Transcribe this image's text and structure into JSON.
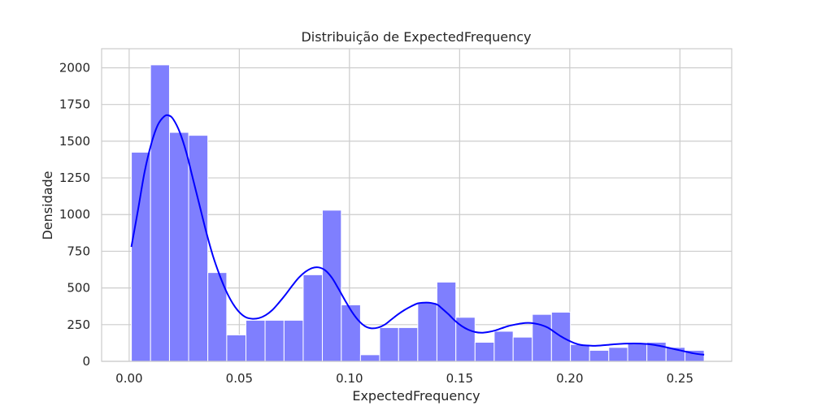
{
  "chart_data": {
    "type": "bar",
    "title": "Distribuição de ExpectedFrequency",
    "xlabel": "ExpectedFrequency",
    "ylabel": "Densidade",
    "xlim": [
      -0.0125,
      0.2735
    ],
    "ylim": [
      0,
      2130
    ],
    "grid": true,
    "bar_color": "#7f7ffe",
    "kde_color": "#0000ff",
    "xticks": [
      {
        "value": 0.0,
        "label": "0.00"
      },
      {
        "value": 0.05,
        "label": "0.05"
      },
      {
        "value": 0.1,
        "label": "0.10"
      },
      {
        "value": 0.15,
        "label": "0.15"
      },
      {
        "value": 0.2,
        "label": "0.20"
      },
      {
        "value": 0.25,
        "label": "0.25"
      }
    ],
    "yticks": [
      {
        "value": 0,
        "label": "0"
      },
      {
        "value": 250,
        "label": "250"
      },
      {
        "value": 500,
        "label": "500"
      },
      {
        "value": 750,
        "label": "750"
      },
      {
        "value": 1000,
        "label": "1000"
      },
      {
        "value": 1250,
        "label": "1250"
      },
      {
        "value": 1500,
        "label": "1500"
      },
      {
        "value": 1750,
        "label": "1750"
      },
      {
        "value": 2000,
        "label": "2000"
      }
    ],
    "bins": [
      {
        "x0": 0.001,
        "x1": 0.0097,
        "value": 1425
      },
      {
        "x0": 0.0097,
        "x1": 0.0183,
        "value": 2020
      },
      {
        "x0": 0.0183,
        "x1": 0.027,
        "value": 1560
      },
      {
        "x0": 0.027,
        "x1": 0.0357,
        "value": 1540
      },
      {
        "x0": 0.0357,
        "x1": 0.0443,
        "value": 605
      },
      {
        "x0": 0.0443,
        "x1": 0.053,
        "value": 180
      },
      {
        "x0": 0.053,
        "x1": 0.0617,
        "value": 280
      },
      {
        "x0": 0.0617,
        "x1": 0.0703,
        "value": 280
      },
      {
        "x0": 0.0703,
        "x1": 0.079,
        "value": 280
      },
      {
        "x0": 0.079,
        "x1": 0.0877,
        "value": 590
      },
      {
        "x0": 0.0877,
        "x1": 0.0963,
        "value": 1030
      },
      {
        "x0": 0.0963,
        "x1": 0.105,
        "value": 385
      },
      {
        "x0": 0.105,
        "x1": 0.1137,
        "value": 45
      },
      {
        "x0": 0.1137,
        "x1": 0.1223,
        "value": 230
      },
      {
        "x0": 0.1223,
        "x1": 0.131,
        "value": 230
      },
      {
        "x0": 0.131,
        "x1": 0.1397,
        "value": 400
      },
      {
        "x0": 0.1397,
        "x1": 0.1483,
        "value": 540
      },
      {
        "x0": 0.1483,
        "x1": 0.157,
        "value": 300
      },
      {
        "x0": 0.157,
        "x1": 0.1657,
        "value": 130
      },
      {
        "x0": 0.1657,
        "x1": 0.1743,
        "value": 205
      },
      {
        "x0": 0.1743,
        "x1": 0.183,
        "value": 165
      },
      {
        "x0": 0.183,
        "x1": 0.1917,
        "value": 320
      },
      {
        "x0": 0.1917,
        "x1": 0.2003,
        "value": 335
      },
      {
        "x0": 0.2003,
        "x1": 0.209,
        "value": 115
      },
      {
        "x0": 0.209,
        "x1": 0.2177,
        "value": 75
      },
      {
        "x0": 0.2177,
        "x1": 0.2263,
        "value": 95
      },
      {
        "x0": 0.2263,
        "x1": 0.235,
        "value": 120
      },
      {
        "x0": 0.235,
        "x1": 0.2437,
        "value": 130
      },
      {
        "x0": 0.2437,
        "x1": 0.2523,
        "value": 95
      },
      {
        "x0": 0.2523,
        "x1": 0.261,
        "value": 75
      }
    ],
    "kde": {
      "x": [
        0.001,
        0.004,
        0.007,
        0.01,
        0.013,
        0.016,
        0.018,
        0.02,
        0.023,
        0.026,
        0.029,
        0.032,
        0.035,
        0.038,
        0.041,
        0.044,
        0.047,
        0.05,
        0.053,
        0.056,
        0.059,
        0.062,
        0.065,
        0.068,
        0.071,
        0.074,
        0.077,
        0.08,
        0.083,
        0.086,
        0.089,
        0.092,
        0.095,
        0.098,
        0.101,
        0.104,
        0.107,
        0.11,
        0.113,
        0.116,
        0.119,
        0.122,
        0.125,
        0.128,
        0.131,
        0.134,
        0.137,
        0.14,
        0.142,
        0.145,
        0.148,
        0.151,
        0.154,
        0.157,
        0.16,
        0.163,
        0.166,
        0.169,
        0.172,
        0.175,
        0.178,
        0.181,
        0.184,
        0.187,
        0.19,
        0.193,
        0.196,
        0.199,
        0.202,
        0.205,
        0.208,
        0.211,
        0.214,
        0.217,
        0.22,
        0.223,
        0.226,
        0.229,
        0.232,
        0.235,
        0.238,
        0.241,
        0.244,
        0.247,
        0.25,
        0.253,
        0.256,
        0.259,
        0.261
      ],
      "y": [
        780,
        1030,
        1290,
        1480,
        1610,
        1670,
        1675,
        1650,
        1560,
        1420,
        1240,
        1060,
        880,
        720,
        590,
        480,
        395,
        335,
        300,
        290,
        295,
        315,
        350,
        400,
        455,
        515,
        570,
        610,
        635,
        640,
        620,
        570,
        495,
        415,
        340,
        280,
        240,
        225,
        230,
        250,
        285,
        320,
        350,
        375,
        395,
        400,
        398,
        385,
        360,
        320,
        275,
        240,
        215,
        200,
        195,
        200,
        210,
        225,
        240,
        250,
        258,
        262,
        258,
        248,
        230,
        200,
        170,
        145,
        125,
        112,
        108,
        106,
        108,
        112,
        116,
        119,
        121,
        122,
        121,
        118,
        113,
        105,
        95,
        85,
        75,
        65,
        55,
        48,
        45
      ]
    }
  }
}
